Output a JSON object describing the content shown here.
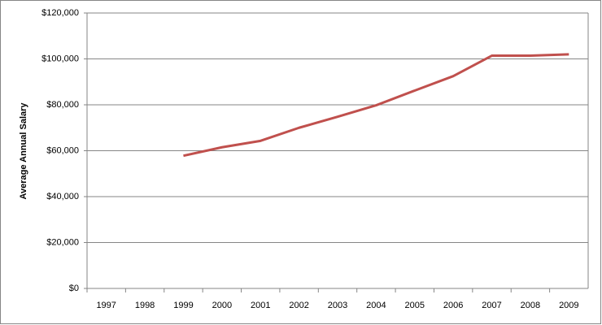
{
  "chart_data": {
    "type": "line",
    "y_label": "Average Annual Salary",
    "categories": [
      "1997",
      "1998",
      "1999",
      "2000",
      "2001",
      "2002",
      "2003",
      "2004",
      "2005",
      "2006",
      "2007",
      "2008",
      "2009"
    ],
    "series": [
      {
        "color": "#c0504d",
        "values": [
          null,
          null,
          57800,
          61500,
          64300,
          70000,
          74800,
          79800,
          86200,
          92500,
          101400,
          101400,
          102000
        ]
      }
    ],
    "ylim": [
      0,
      120000
    ],
    "yticks": [
      {
        "value": 0,
        "label": "$0"
      },
      {
        "value": 20000,
        "label": "$20,000"
      },
      {
        "value": 40000,
        "label": "$40,000"
      },
      {
        "value": 60000,
        "label": "$60,000"
      },
      {
        "value": 80000,
        "label": "$80,000"
      },
      {
        "value": 100000,
        "label": "$100,000"
      },
      {
        "value": 120000,
        "label": "$120,000"
      }
    ],
    "grid": true
  }
}
